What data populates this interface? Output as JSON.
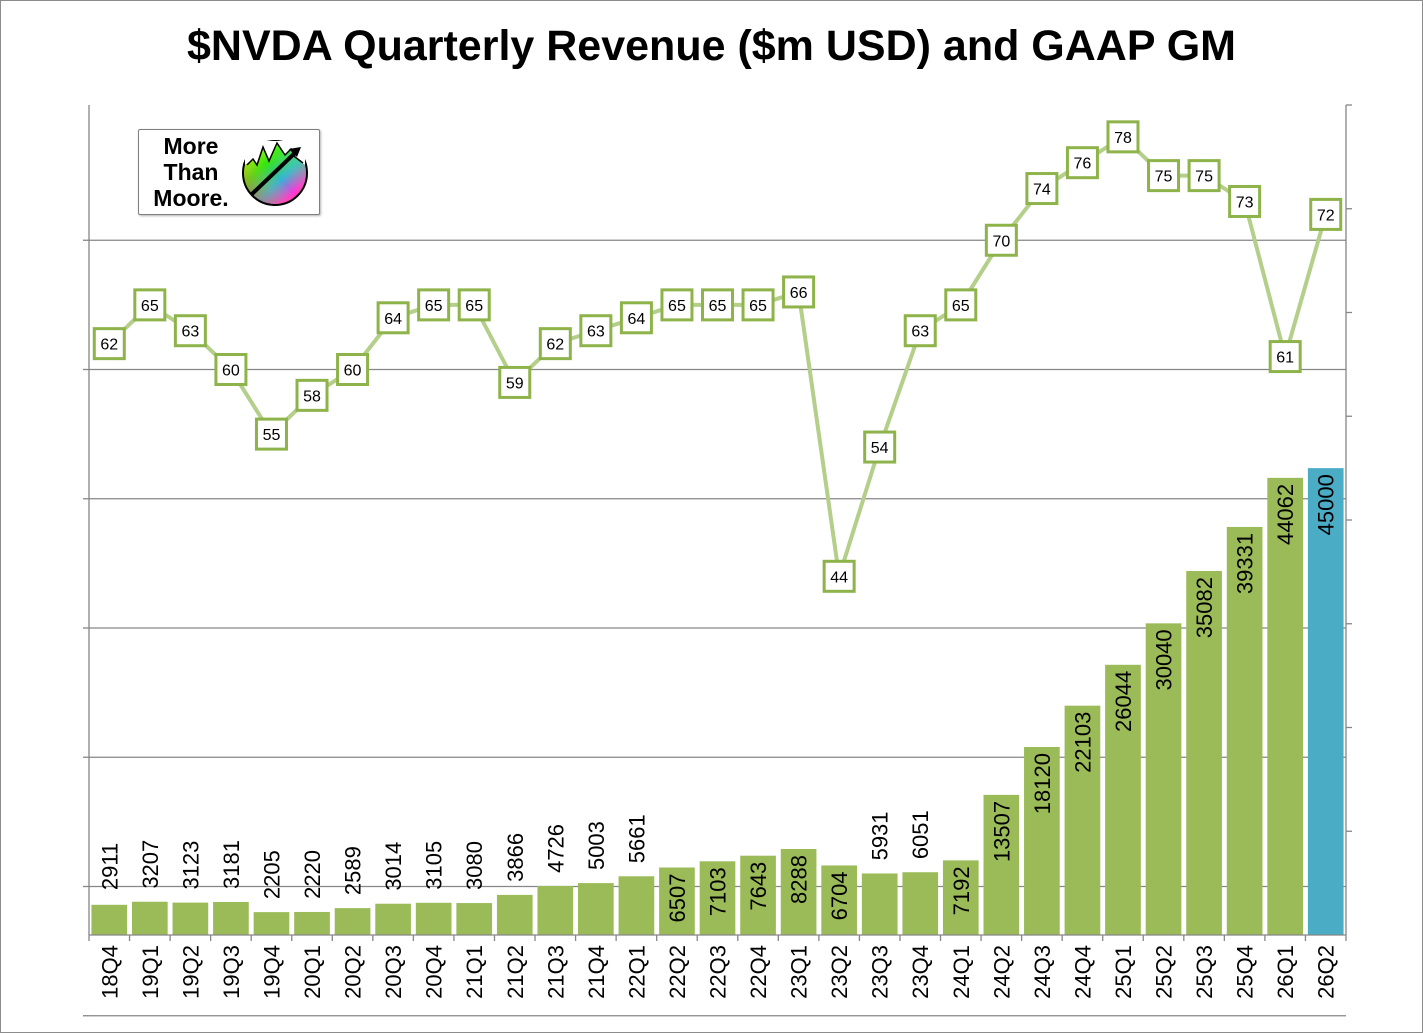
{
  "chart_data": {
    "type": "bar",
    "title": "$NVDA Quarterly Revenue ($m USD) and GAAP GM",
    "xlabel": "",
    "ylabel": "",
    "categories": [
      "18Q4",
      "19Q1",
      "19Q2",
      "19Q3",
      "19Q4",
      "20Q1",
      "20Q2",
      "20Q3",
      "20Q4",
      "21Q1",
      "21Q2",
      "21Q3",
      "21Q4",
      "22Q1",
      "22Q2",
      "22Q3",
      "22Q4",
      "23Q1",
      "23Q2",
      "23Q3",
      "23Q4",
      "24Q1",
      "24Q2",
      "24Q3",
      "24Q4",
      "25Q1",
      "25Q2",
      "25Q3",
      "25Q4",
      "26Q1",
      "26Q2"
    ],
    "series": [
      {
        "type": "bar",
        "values": [
          2911,
          3207,
          3123,
          3181,
          2205,
          2220,
          2589,
          3014,
          3105,
          3080,
          3866,
          4726,
          5003,
          5661,
          6507,
          7103,
          7643,
          8288,
          6704,
          5931,
          6051,
          7192,
          13507,
          18120,
          22103,
          26044,
          30040,
          35082,
          39331,
          44062,
          45000
        ],
        "color": "#9bbb59",
        "highlight_color": "#4bacc6",
        "highlight_index": 30
      },
      {
        "type": "line",
        "values": [
          62,
          65,
          63,
          60,
          55,
          58,
          60,
          64,
          65,
          65,
          59,
          62,
          63,
          64,
          65,
          65,
          65,
          66,
          44,
          54,
          63,
          65,
          70,
          74,
          76,
          78,
          75,
          75,
          73,
          61,
          72
        ],
        "color": "#b3cf8a",
        "marker_border": "#8db34a"
      }
    ],
    "ylim_revenue": [
      0,
      80000
    ],
    "ylim_gm": [
      0,
      80
    ],
    "grid": true,
    "legend": "none"
  },
  "logo": {
    "line1": "More",
    "line2": "Than",
    "line3": "Moore."
  }
}
